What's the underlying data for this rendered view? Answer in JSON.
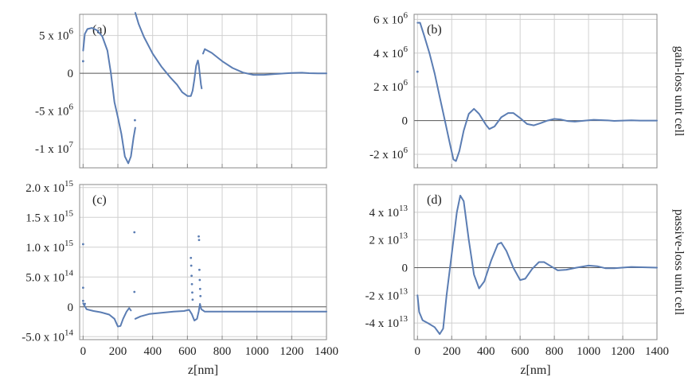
{
  "figure": {
    "x_axis_label": "z[nm]",
    "row_labels": [
      "gain-loss unit cell",
      "passive-loss unit cell"
    ]
  },
  "colors": {
    "curve": "#5b7db3",
    "grid": "#d0d0d0",
    "zero_line": "#555555",
    "frame": "#888888"
  },
  "chart_data": [
    {
      "type": "scatter",
      "panel": "(a)",
      "xlim": [
        -20,
        1400
      ],
      "ylim": [
        -12500000,
        7800000
      ],
      "x_ticks": [
        0,
        200,
        400,
        600,
        800,
        1000,
        1200,
        1400
      ],
      "y_ticks": [
        {
          "value": 5000000,
          "mantissa": "5",
          "exp": "6"
        },
        {
          "value": 0,
          "mantissa": "0",
          "exp": ""
        },
        {
          "value": -5000000,
          "mantissa": "-5",
          "exp": "6"
        },
        {
          "value": -10000000,
          "mantissa": "-1",
          "exp": "7"
        }
      ],
      "grid": true,
      "series": [
        {
          "segments": [
            [
              [
                0,
                3000000
              ],
              [
                10,
                5200000
              ],
              [
                25,
                5850000
              ],
              [
                50,
                6000000
              ],
              [
                80,
                5700000
              ],
              [
                110,
                4900000
              ],
              [
                140,
                3000000
              ],
              [
                160,
                0
              ],
              [
                180,
                -3800000
              ],
              [
                200,
                -5800000
              ],
              [
                220,
                -8000000
              ],
              [
                240,
                -11000000
              ],
              [
                260,
                -11900000
              ],
              [
                275,
                -11000000
              ],
              [
                290,
                -8500000
              ],
              [
                300,
                -7200000
              ]
            ],
            [
              [
                300,
                8000000
              ],
              [
                320,
                6500000
              ],
              [
                350,
                4800000
              ],
              [
                400,
                2600000
              ],
              [
                450,
                900000
              ],
              [
                500,
                -500000
              ],
              [
                540,
                -1500000
              ],
              [
                570,
                -2500000
              ],
              [
                600,
                -3000000
              ],
              [
                620,
                -3000000
              ],
              [
                630,
                -2300000
              ],
              [
                640,
                -800000
              ],
              [
                650,
                1000000
              ],
              [
                660,
                1700000
              ],
              [
                665,
                1200000
              ],
              [
                672,
                -300000
              ],
              [
                678,
                -1500000
              ],
              [
                682,
                -2000000
              ]
            ],
            [
              [
                690,
                2600000
              ],
              [
                700,
                3200000
              ],
              [
                740,
                2700000
              ],
              [
                800,
                1600000
              ],
              [
                860,
                700000
              ],
              [
                920,
                100000
              ],
              [
                980,
                -200000
              ],
              [
                1040,
                -200000
              ],
              [
                1100,
                -100000
              ],
              [
                1160,
                0
              ],
              [
                1200,
                50000
              ],
              [
                1260,
                80000
              ],
              [
                1300,
                20000
              ],
              [
                1350,
                0
              ],
              [
                1400,
                0
              ]
            ]
          ]
        }
      ],
      "outliers": [
        [
          0,
          1600000
        ],
        [
          298,
          -6200000
        ]
      ]
    },
    {
      "type": "scatter",
      "panel": "(b)",
      "xlim": [
        -20,
        1400
      ],
      "ylim": [
        -2800000,
        6300000
      ],
      "x_ticks": [
        0,
        200,
        400,
        600,
        800,
        1000,
        1200,
        1400
      ],
      "y_ticks": [
        {
          "value": 6000000,
          "mantissa": "6 x 10",
          "exp": "6"
        },
        {
          "value": 4000000,
          "mantissa": "4 x 10",
          "exp": "6"
        },
        {
          "value": 2000000,
          "mantissa": "2 x 10",
          "exp": "6"
        },
        {
          "value": 0,
          "mantissa": "0",
          "exp": ""
        },
        {
          "value": -2000000,
          "mantissa": "-2 x 10",
          "exp": "6"
        }
      ],
      "grid": true,
      "series": [
        {
          "segments": [
            [
              [
                0,
                5800000
              ],
              [
                15,
                5800000
              ],
              [
                40,
                5000000
              ],
              [
                70,
                4000000
              ],
              [
                100,
                2800000
              ],
              [
                130,
                1400000
              ],
              [
                160,
                0
              ],
              [
                190,
                -1400000
              ],
              [
                210,
                -2300000
              ],
              [
                225,
                -2400000
              ],
              [
                245,
                -1800000
              ],
              [
                270,
                -600000
              ],
              [
                300,
                400000
              ],
              [
                330,
                700000
              ],
              [
                360,
                400000
              ],
              [
                400,
                -250000
              ],
              [
                420,
                -500000
              ],
              [
                450,
                -350000
              ],
              [
                490,
                200000
              ],
              [
                530,
                450000
              ],
              [
                560,
                450000
              ],
              [
                600,
                150000
              ],
              [
                640,
                -200000
              ],
              [
                680,
                -280000
              ],
              [
                720,
                -150000
              ],
              [
                760,
                0
              ],
              [
                800,
                100000
              ],
              [
                840,
                60000
              ],
              [
                880,
                -30000
              ],
              [
                920,
                -60000
              ],
              [
                980,
                0
              ],
              [
                1030,
                50000
              ],
              [
                1100,
                20000
              ],
              [
                1150,
                -20000
              ],
              [
                1250,
                20000
              ],
              [
                1300,
                0
              ],
              [
                1400,
                0
              ]
            ]
          ]
        }
      ],
      "outliers": [
        [
          0,
          2900000
        ]
      ]
    },
    {
      "type": "scatter",
      "panel": "(c)",
      "xlim": [
        -20,
        1400
      ],
      "ylim": [
        -550000000000000,
        2050000000000000
      ],
      "x_ticks": [
        0,
        200,
        400,
        600,
        800,
        1000,
        1200,
        1400
      ],
      "y_ticks": [
        {
          "value": 2000000000000000,
          "mantissa": "2.0 x 10",
          "exp": "15"
        },
        {
          "value": 1500000000000000,
          "mantissa": "1.5 x 10",
          "exp": "15"
        },
        {
          "value": 1000000000000000,
          "mantissa": "1.0 x 10",
          "exp": "15"
        },
        {
          "value": 500000000000000,
          "mantissa": "5.0 x 10",
          "exp": "14"
        },
        {
          "value": 0,
          "mantissa": "0",
          "exp": ""
        },
        {
          "value": -500000000000000,
          "mantissa": "-5.0 x 10",
          "exp": "14"
        }
      ],
      "grid": true,
      "series": [
        {
          "segments": [
            [
              [
                0,
                60000000000000
              ],
              [
                20,
                -40000000000000
              ],
              [
                60,
                -70000000000000
              ],
              [
                100,
                -90000000000000
              ],
              [
                150,
                -130000000000000
              ],
              [
                180,
                -200000000000000
              ],
              [
                200,
                -330000000000000
              ],
              [
                215,
                -320000000000000
              ],
              [
                230,
                -200000000000000
              ],
              [
                250,
                -80000000000000
              ],
              [
                265,
                -20000000000000
              ],
              [
                275,
                -60000000000000
              ]
            ],
            [
              [
                300,
                -200000000000000
              ],
              [
                330,
                -160000000000000
              ],
              [
                380,
                -120000000000000
              ],
              [
                450,
                -100000000000000
              ],
              [
                520,
                -80000000000000
              ],
              [
                580,
                -70000000000000
              ],
              [
                610,
                -50000000000000
              ],
              [
                625,
                -120000000000000
              ],
              [
                640,
                -230000000000000
              ],
              [
                655,
                -200000000000000
              ],
              [
                665,
                -80000000000000
              ],
              [
                672,
                50000000000000
              ],
              [
                680,
                -40000000000000
              ],
              [
                700,
                -80000000000000
              ],
              [
                800,
                -80000000000000
              ],
              [
                900,
                -80000000000000
              ],
              [
                1000,
                -80000000000000
              ],
              [
                1100,
                -80000000000000
              ],
              [
                1200,
                -80000000000000
              ],
              [
                1300,
                -80000000000000
              ],
              [
                1400,
                -80000000000000
              ]
            ]
          ]
        }
      ],
      "outliers": [
        [
          0,
          1050000000000000
        ],
        [
          0,
          320000000000000
        ],
        [
          0,
          100000000000000
        ],
        [
          10,
          50000000000000
        ],
        [
          295,
          1250000000000000
        ],
        [
          295,
          250000000000000
        ],
        [
          620,
          820000000000000
        ],
        [
          622,
          690000000000000
        ],
        [
          624,
          520000000000000
        ],
        [
          626,
          380000000000000
        ],
        [
          628,
          240000000000000
        ],
        [
          630,
          120000000000000
        ],
        [
          665,
          1180000000000000
        ],
        [
          667,
          1120000000000000
        ],
        [
          669,
          620000000000000
        ],
        [
          671,
          450000000000000
        ],
        [
          673,
          300000000000000
        ],
        [
          675,
          180000000000000
        ]
      ]
    },
    {
      "type": "scatter",
      "panel": "(d)",
      "xlim": [
        -20,
        1400
      ],
      "ylim": [
        -52000000000000,
        60000000000000
      ],
      "x_ticks": [
        0,
        200,
        400,
        600,
        800,
        1000,
        1200,
        1400
      ],
      "y_ticks": [
        {
          "value": 40000000000000,
          "mantissa": "4 x 10",
          "exp": "13"
        },
        {
          "value": 20000000000000,
          "mantissa": "2 x 10",
          "exp": "13"
        },
        {
          "value": 0,
          "mantissa": "0",
          "exp": ""
        },
        {
          "value": -20000000000000,
          "mantissa": "-2 x 10",
          "exp": "13"
        },
        {
          "value": -40000000000000,
          "mantissa": "-4 x 10",
          "exp": "13"
        }
      ],
      "grid": true,
      "series": [
        {
          "segments": [
            [
              [
                0,
                -20000000000000
              ],
              [
                10,
                -32000000000000
              ],
              [
                30,
                -38000000000000
              ],
              [
                60,
                -40000000000000
              ],
              [
                100,
                -43000000000000
              ],
              [
                130,
                -48000000000000
              ],
              [
                150,
                -44000000000000
              ],
              [
                170,
                -20000000000000
              ],
              [
                200,
                10000000000000
              ],
              [
                230,
                40000000000000
              ],
              [
                250,
                52000000000000
              ],
              [
                270,
                48000000000000
              ],
              [
                300,
                20000000000000
              ],
              [
                330,
                -5000000000000
              ],
              [
                360,
                -15000000000000
              ],
              [
                390,
                -10000000000000
              ],
              [
                430,
                5000000000000
              ],
              [
                470,
                17000000000000
              ],
              [
                490,
                18000000000000
              ],
              [
                520,
                12000000000000
              ],
              [
                560,
                0
              ],
              [
                600,
                -9000000000000
              ],
              [
                630,
                -8000000000000
              ],
              [
                670,
                -1000000000000
              ],
              [
                710,
                4000000000000
              ],
              [
                740,
                4000000000000
              ],
              [
                780,
                1000000000000
              ],
              [
                820,
                -2000000000000
              ],
              [
                870,
                -1500000000000
              ],
              [
                930,
                0
              ],
              [
                1000,
                1500000000000
              ],
              [
                1050,
                1000000000000
              ],
              [
                1100,
                -500000000000
              ],
              [
                1150,
                -500000000000
              ],
              [
                1250,
                500000000000
              ],
              [
                1400,
                0
              ]
            ]
          ]
        }
      ],
      "outliers": []
    }
  ]
}
